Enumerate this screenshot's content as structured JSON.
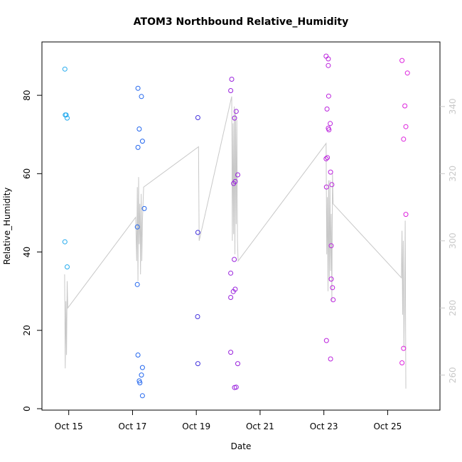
{
  "chart_data": {
    "type": "scatter",
    "title": "ATOM3 Northbound Relative_Humidity",
    "xlabel": "Date",
    "ylabel": "Relative_Humidity",
    "xlim": [
      14.5,
      26.0
    ],
    "ylim": [
      0,
      90
    ],
    "grid": false,
    "x_ticks": [
      {
        "value": 14.85,
        "label": "Oct 15"
      },
      {
        "value": 16.85,
        "label": "Oct 17"
      },
      {
        "value": 18.85,
        "label": "Oct 19"
      },
      {
        "value": 20.85,
        "label": "Oct 21"
      },
      {
        "value": 22.85,
        "label": "Oct 23"
      },
      {
        "value": 24.85,
        "label": "Oct 25"
      }
    ],
    "y_ticks": [
      0,
      20,
      40,
      60,
      80
    ],
    "y2_ticks": [
      260,
      280,
      300,
      320,
      340
    ],
    "y2lim": [
      250,
      355
    ],
    "points": [
      {
        "x": 14.73,
        "y": 86.7,
        "color": "#22aaee"
      },
      {
        "x": 14.74,
        "y": 75.0,
        "color": "#22aaee"
      },
      {
        "x": 14.77,
        "y": 75.0,
        "color": "#22aaee"
      },
      {
        "x": 14.8,
        "y": 74.2,
        "color": "#22aaee"
      },
      {
        "x": 14.73,
        "y": 42.6,
        "color": "#22aaee"
      },
      {
        "x": 14.8,
        "y": 36.2,
        "color": "#22aaee"
      },
      {
        "x": 17.02,
        "y": 81.8,
        "color": "#2266ee"
      },
      {
        "x": 17.13,
        "y": 79.7,
        "color": "#2266ee"
      },
      {
        "x": 17.06,
        "y": 71.4,
        "color": "#2266ee"
      },
      {
        "x": 17.16,
        "y": 68.3,
        "color": "#2266ee"
      },
      {
        "x": 17.02,
        "y": 66.7,
        "color": "#2266ee"
      },
      {
        "x": 17.22,
        "y": 51.1,
        "color": "#2266ee"
      },
      {
        "x": 17.0,
        "y": 46.4,
        "color": "#2266ee"
      },
      {
        "x": 17.0,
        "y": 31.7,
        "color": "#2266ee"
      },
      {
        "x": 17.02,
        "y": 13.7,
        "color": "#2266ee"
      },
      {
        "x": 17.16,
        "y": 10.5,
        "color": "#2266ee"
      },
      {
        "x": 17.13,
        "y": 8.6,
        "color": "#2266ee"
      },
      {
        "x": 17.06,
        "y": 7.1,
        "color": "#2266ee"
      },
      {
        "x": 17.08,
        "y": 6.6,
        "color": "#2266ee"
      },
      {
        "x": 17.16,
        "y": 3.3,
        "color": "#2266ee"
      },
      {
        "x": 18.9,
        "y": 74.3,
        "color": "#4433dd"
      },
      {
        "x": 18.9,
        "y": 45.0,
        "color": "#4433dd"
      },
      {
        "x": 18.89,
        "y": 23.5,
        "color": "#4433dd"
      },
      {
        "x": 18.9,
        "y": 11.5,
        "color": "#4433dd"
      },
      {
        "x": 19.96,
        "y": 84.1,
        "color": "#9922dd"
      },
      {
        "x": 19.93,
        "y": 81.2,
        "color": "#9922dd"
      },
      {
        "x": 20.1,
        "y": 75.9,
        "color": "#9922dd"
      },
      {
        "x": 20.05,
        "y": 74.2,
        "color": "#9922dd"
      },
      {
        "x": 20.15,
        "y": 59.7,
        "color": "#9922dd"
      },
      {
        "x": 20.07,
        "y": 58.0,
        "color": "#9922dd"
      },
      {
        "x": 20.02,
        "y": 57.5,
        "color": "#9922dd"
      },
      {
        "x": 20.04,
        "y": 38.1,
        "color": "#9922dd"
      },
      {
        "x": 19.93,
        "y": 34.6,
        "color": "#9922dd"
      },
      {
        "x": 20.07,
        "y": 30.5,
        "color": "#9922dd"
      },
      {
        "x": 20.01,
        "y": 29.9,
        "color": "#9922dd"
      },
      {
        "x": 19.93,
        "y": 28.4,
        "color": "#9922dd"
      },
      {
        "x": 19.93,
        "y": 14.4,
        "color": "#9922dd"
      },
      {
        "x": 20.15,
        "y": 11.5,
        "color": "#9922dd"
      },
      {
        "x": 20.1,
        "y": 5.5,
        "color": "#9922dd"
      },
      {
        "x": 20.05,
        "y": 5.4,
        "color": "#9922dd"
      },
      {
        "x": 22.92,
        "y": 90.0,
        "color": "#bb22dd"
      },
      {
        "x": 22.99,
        "y": 89.3,
        "color": "#bb22dd"
      },
      {
        "x": 22.99,
        "y": 87.6,
        "color": "#bb22dd"
      },
      {
        "x": 23.0,
        "y": 79.8,
        "color": "#bb22dd"
      },
      {
        "x": 22.95,
        "y": 76.5,
        "color": "#bb22dd"
      },
      {
        "x": 23.05,
        "y": 72.8,
        "color": "#bb22dd"
      },
      {
        "x": 22.99,
        "y": 71.6,
        "color": "#bb22dd"
      },
      {
        "x": 23.01,
        "y": 71.2,
        "color": "#bb22dd"
      },
      {
        "x": 22.96,
        "y": 64.1,
        "color": "#bb22dd"
      },
      {
        "x": 22.92,
        "y": 63.8,
        "color": "#bb22dd"
      },
      {
        "x": 23.06,
        "y": 60.4,
        "color": "#bb22dd"
      },
      {
        "x": 23.1,
        "y": 57.2,
        "color": "#bb22dd"
      },
      {
        "x": 22.93,
        "y": 56.6,
        "color": "#bb22dd"
      },
      {
        "x": 23.08,
        "y": 41.6,
        "color": "#bb22dd"
      },
      {
        "x": 23.08,
        "y": 33.1,
        "color": "#bb22dd"
      },
      {
        "x": 23.12,
        "y": 30.9,
        "color": "#bb22dd"
      },
      {
        "x": 23.14,
        "y": 27.8,
        "color": "#bb22dd"
      },
      {
        "x": 22.93,
        "y": 17.4,
        "color": "#bb22dd"
      },
      {
        "x": 23.06,
        "y": 12.7,
        "color": "#bb22dd"
      },
      {
        "x": 25.3,
        "y": 88.9,
        "color": "#dd22dd"
      },
      {
        "x": 25.47,
        "y": 85.7,
        "color": "#dd22dd"
      },
      {
        "x": 25.39,
        "y": 77.3,
        "color": "#dd22dd"
      },
      {
        "x": 25.42,
        "y": 72.0,
        "color": "#dd22dd"
      },
      {
        "x": 25.35,
        "y": 68.8,
        "color": "#dd22dd"
      },
      {
        "x": 25.42,
        "y": 49.6,
        "color": "#dd22dd"
      },
      {
        "x": 25.35,
        "y": 15.4,
        "color": "#dd22dd"
      },
      {
        "x": 25.3,
        "y": 11.7,
        "color": "#dd22dd"
      }
    ],
    "line_series": {
      "color": "#c8c8c8",
      "axis": "right",
      "points": [
        [
          14.72,
          290
        ],
        [
          14.74,
          262
        ],
        [
          14.76,
          282
        ],
        [
          14.78,
          266
        ],
        [
          14.8,
          288
        ],
        [
          14.82,
          280
        ],
        [
          16.95,
          307
        ],
        [
          16.98,
          294
        ],
        [
          17.0,
          316
        ],
        [
          17.02,
          288
        ],
        [
          17.04,
          319
        ],
        [
          17.06,
          299
        ],
        [
          17.08,
          311
        ],
        [
          17.1,
          290
        ],
        [
          17.12,
          314
        ],
        [
          17.14,
          294
        ],
        [
          17.16,
          306
        ],
        [
          17.2,
          316
        ],
        [
          18.92,
          328
        ],
        [
          18.94,
          300
        ],
        [
          19.96,
          343
        ],
        [
          19.97,
          324
        ],
        [
          19.98,
          300
        ],
        [
          20.0,
          335
        ],
        [
          20.02,
          302
        ],
        [
          20.04,
          340
        ],
        [
          20.06,
          296
        ],
        [
          20.08,
          339
        ],
        [
          20.1,
          305
        ],
        [
          20.12,
          336
        ],
        [
          20.14,
          300
        ],
        [
          20.16,
          294
        ],
        [
          22.92,
          329
        ],
        [
          22.94,
          296
        ],
        [
          22.96,
          313
        ],
        [
          22.98,
          285
        ],
        [
          23.0,
          318
        ],
        [
          23.02,
          288
        ],
        [
          23.04,
          318
        ],
        [
          23.06,
          291
        ],
        [
          23.08,
          308
        ],
        [
          23.1,
          282
        ],
        [
          23.12,
          320
        ],
        [
          23.14,
          311
        ],
        [
          25.28,
          289
        ],
        [
          25.3,
          303
        ],
        [
          25.32,
          278
        ],
        [
          25.34,
          300
        ],
        [
          25.36,
          268
        ],
        [
          25.38,
          283
        ],
        [
          25.4,
          306
        ],
        [
          25.42,
          256
        ]
      ]
    }
  }
}
